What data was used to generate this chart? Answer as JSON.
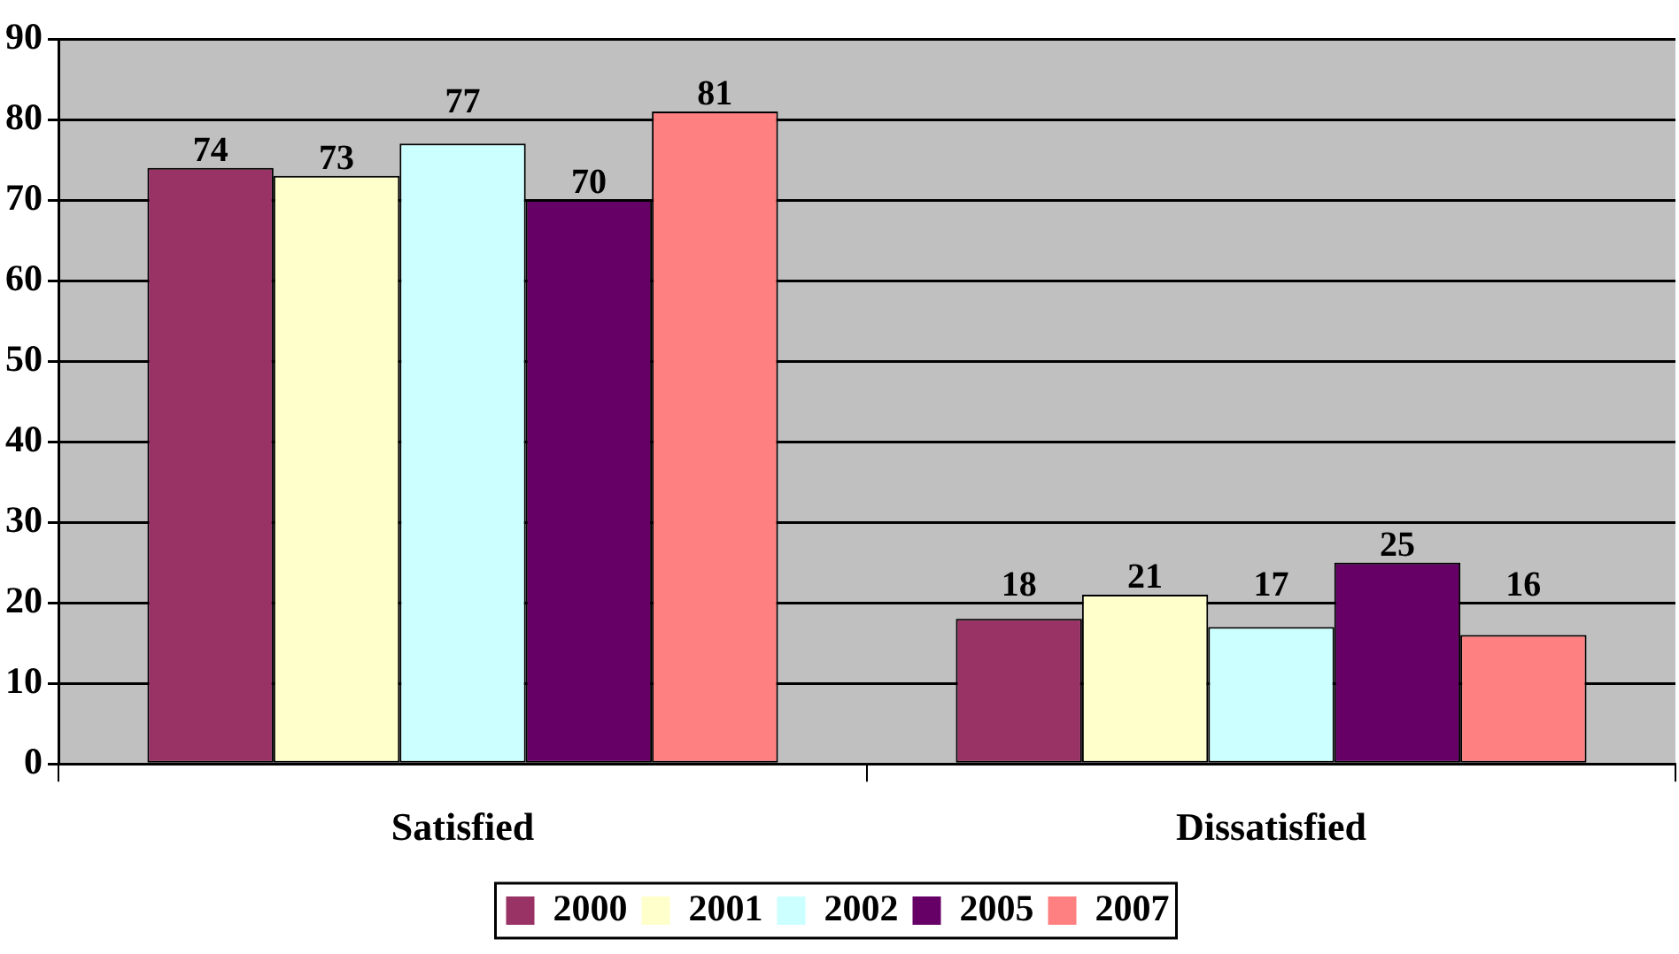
{
  "chart_data": {
    "type": "bar",
    "categories": [
      "Satisfied",
      "Dissatisfied"
    ],
    "series": [
      {
        "name": "2000",
        "color": "#993366",
        "values": [
          74,
          18
        ]
      },
      {
        "name": "2001",
        "color": "#ffffcc",
        "values": [
          73,
          21
        ]
      },
      {
        "name": "2002",
        "color": "#ccffff",
        "values": [
          77,
          17
        ]
      },
      {
        "name": "2005",
        "color": "#660066",
        "values": [
          70,
          25
        ]
      },
      {
        "name": "2007",
        "color": "#ff8080",
        "values": [
          81,
          16
        ]
      }
    ],
    "ylim": [
      0,
      90
    ],
    "yticks": [
      0,
      10,
      20,
      30,
      40,
      50,
      60,
      70,
      80,
      90
    ],
    "grid": "y",
    "legend": "bottom",
    "data_labels": true
  }
}
